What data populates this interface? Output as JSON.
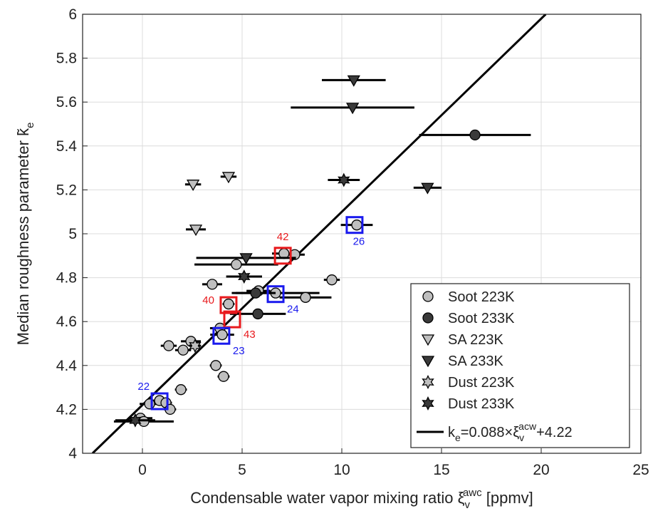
{
  "chart_data": {
    "type": "scatter",
    "x_label": {
      "text": "Condensable water vapor mixing ratio ξ",
      "sub": "v",
      "sup": "awc",
      "suffix": " [ppmv]"
    },
    "y_label": {
      "text": "Median roughness parameter k̃",
      "sub": "e"
    },
    "xlim": [
      -3,
      25
    ],
    "ylim": [
      4,
      6
    ],
    "xticks": [
      0,
      5,
      10,
      15,
      20,
      25
    ],
    "yticks": [
      4,
      4.2,
      4.4,
      4.6,
      4.8,
      5,
      5.2,
      5.4,
      5.6,
      5.8,
      6
    ],
    "grid": true,
    "legend": "lower right",
    "series": [
      {
        "name": "Soot 223K",
        "marker": "circle",
        "color": "#bfbfbf",
        "x": [
          -0.1,
          0.07,
          0.36,
          0.86,
          1.18,
          1.39,
          1.93,
          1.32,
          2.04,
          2.43,
          3.68,
          4.07,
          3.89,
          4.0,
          4.32,
          3.5,
          4.71,
          5.82,
          6.68,
          8.18,
          9.5,
          7.1,
          7.64,
          10.75
        ],
        "y": [
          4.16,
          4.145,
          4.225,
          4.24,
          4.23,
          4.2,
          4.29,
          4.49,
          4.47,
          4.51,
          4.4,
          4.35,
          4.57,
          4.54,
          4.68,
          4.77,
          4.86,
          4.74,
          4.73,
          4.71,
          4.79,
          4.91,
          4.905,
          5.04
        ],
        "xerr": [
          0.6,
          1.5,
          0.5,
          0.4,
          0.3,
          0.3,
          0.3,
          0.4,
          0.4,
          0.5,
          0.3,
          0.3,
          0.5,
          0.6,
          0.3,
          0.5,
          2.1,
          0.6,
          2.2,
          1.3,
          0.4,
          0.6,
          0.5,
          0.8
        ]
      },
      {
        "name": "Soot 233K",
        "marker": "circle",
        "color": "#3a3a3a",
        "x": [
          16.68,
          5.68,
          5.79
        ],
        "y": [
          5.45,
          4.73,
          4.635
        ],
        "xerr": [
          2.8,
          1.0,
          1.4
        ]
      },
      {
        "name": "SA 223K",
        "marker": "triangle",
        "color": "#bfbfbf",
        "x": [
          4.32,
          2.54,
          2.68
        ],
        "y": [
          5.26,
          5.225,
          5.02
        ],
        "xerr": [
          0.4,
          0.4,
          0.5
        ]
      },
      {
        "name": "SA 233K",
        "marker": "triangle",
        "color": "#3a3a3a",
        "x": [
          10.6,
          10.54,
          14.3,
          5.2
        ],
        "y": [
          5.7,
          5.575,
          5.21,
          4.89
        ],
        "xerr": [
          1.6,
          3.1,
          0.7,
          2.5
        ]
      },
      {
        "name": "Dust 223K",
        "marker": "hexagram",
        "color": "#bfbfbf",
        "x": [
          2.64
        ],
        "y": [
          4.49
        ],
        "xerr": [
          0.3
        ]
      },
      {
        "name": "Dust 233K",
        "marker": "hexagram",
        "color": "#3a3a3a",
        "x": [
          10.1,
          5.1,
          -0.36
        ],
        "y": [
          5.245,
          4.805,
          4.15
        ],
        "xerr": [
          0.8,
          0.9,
          1.0
        ]
      }
    ],
    "fit": {
      "slope": 0.088,
      "intercept": 4.22,
      "label": {
        "k": "k",
        "sub": "e",
        "mid": "=0.088×ξ",
        "sub2": "v",
        "sup": "acw",
        "end": "+4.22"
      }
    },
    "annotations": [
      {
        "text": "42",
        "x": 7.04,
        "y": 4.9,
        "color": "#e8191c",
        "side": "above"
      },
      {
        "text": "40",
        "x": 4.32,
        "y": 4.675,
        "color": "#e8191c",
        "side": "left"
      },
      {
        "text": "43",
        "x": 4.5,
        "y": 4.61,
        "color": "#e8191c",
        "side": "below-right"
      },
      {
        "text": "22",
        "x": 0.86,
        "y": 4.237,
        "color": "#1a1aee",
        "side": "above-left"
      },
      {
        "text": "23",
        "x": 3.96,
        "y": 4.535,
        "color": "#1a1aee",
        "side": "below-right"
      },
      {
        "text": "24",
        "x": 6.68,
        "y": 4.725,
        "color": "#1a1aee",
        "side": "below-right"
      },
      {
        "text": "26",
        "x": 10.64,
        "y": 5.04,
        "color": "#1a1aee",
        "side": "below"
      }
    ]
  }
}
